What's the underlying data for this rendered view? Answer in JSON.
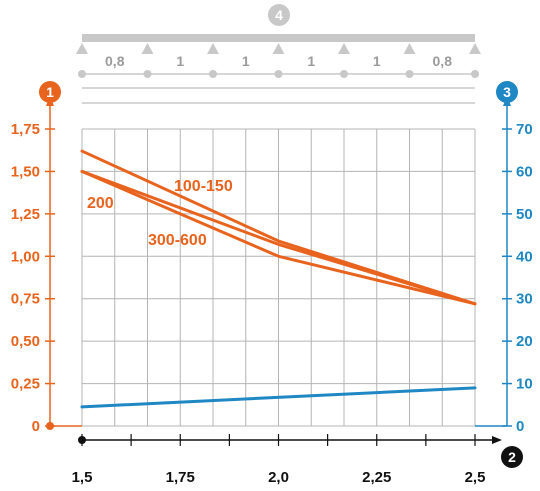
{
  "chart_data": {
    "type": "line",
    "colors": {
      "load_axis": "#e8641e",
      "deflection_axis": "#1e87c4",
      "span_axis": "#111111",
      "beam": "#c8c8c8",
      "grid": "#b4b4b4"
    },
    "badges": {
      "left_axis": "1",
      "x_axis": "2",
      "right_axis": "3",
      "beam": "4"
    },
    "x": {
      "min": 1.5,
      "max": 2.5,
      "ticks": [
        1.5,
        1.75,
        2.0,
        2.25,
        2.5
      ],
      "tick_labels": [
        "1,5",
        "1,75",
        "2,0",
        "2,25",
        "2,5"
      ],
      "minor_step": 0.125
    },
    "y_left": {
      "min": 0,
      "max": 1.75,
      "ticks": [
        0,
        0.25,
        0.5,
        0.75,
        1.0,
        1.25,
        1.5,
        1.75
      ],
      "tick_labels": [
        "0",
        "0,25",
        "0,50",
        "0,75",
        "1,00",
        "1,25",
        "1,50",
        "1,75"
      ]
    },
    "y_right": {
      "min": 0,
      "max": 70,
      "ticks": [
        0,
        10,
        20,
        30,
        40,
        50,
        60,
        70
      ],
      "tick_labels": [
        "0",
        "10",
        "20",
        "30",
        "40",
        "50",
        "60",
        "70"
      ]
    },
    "beam_spans": [
      "0,8",
      "1",
      "1",
      "1",
      "1",
      "0,8"
    ],
    "series": [
      {
        "name": "100-150",
        "axis": "left",
        "color": "#e8641e",
        "x": [
          1.5,
          2.0,
          2.5
        ],
        "y": [
          1.62,
          1.09,
          0.72
        ]
      },
      {
        "name": "200",
        "axis": "left",
        "color": "#e8641e",
        "x": [
          1.5,
          2.0,
          2.5
        ],
        "y": [
          1.5,
          1.07,
          0.72
        ]
      },
      {
        "name": "300-600",
        "axis": "left",
        "color": "#e8641e",
        "x": [
          1.5,
          2.0,
          2.5
        ],
        "y": [
          1.5,
          1.0,
          0.72
        ]
      },
      {
        "name": "",
        "axis": "right",
        "color": "#1e87c4",
        "x": [
          1.5,
          2.5
        ],
        "y": [
          4.5,
          9.0
        ]
      }
    ]
  }
}
